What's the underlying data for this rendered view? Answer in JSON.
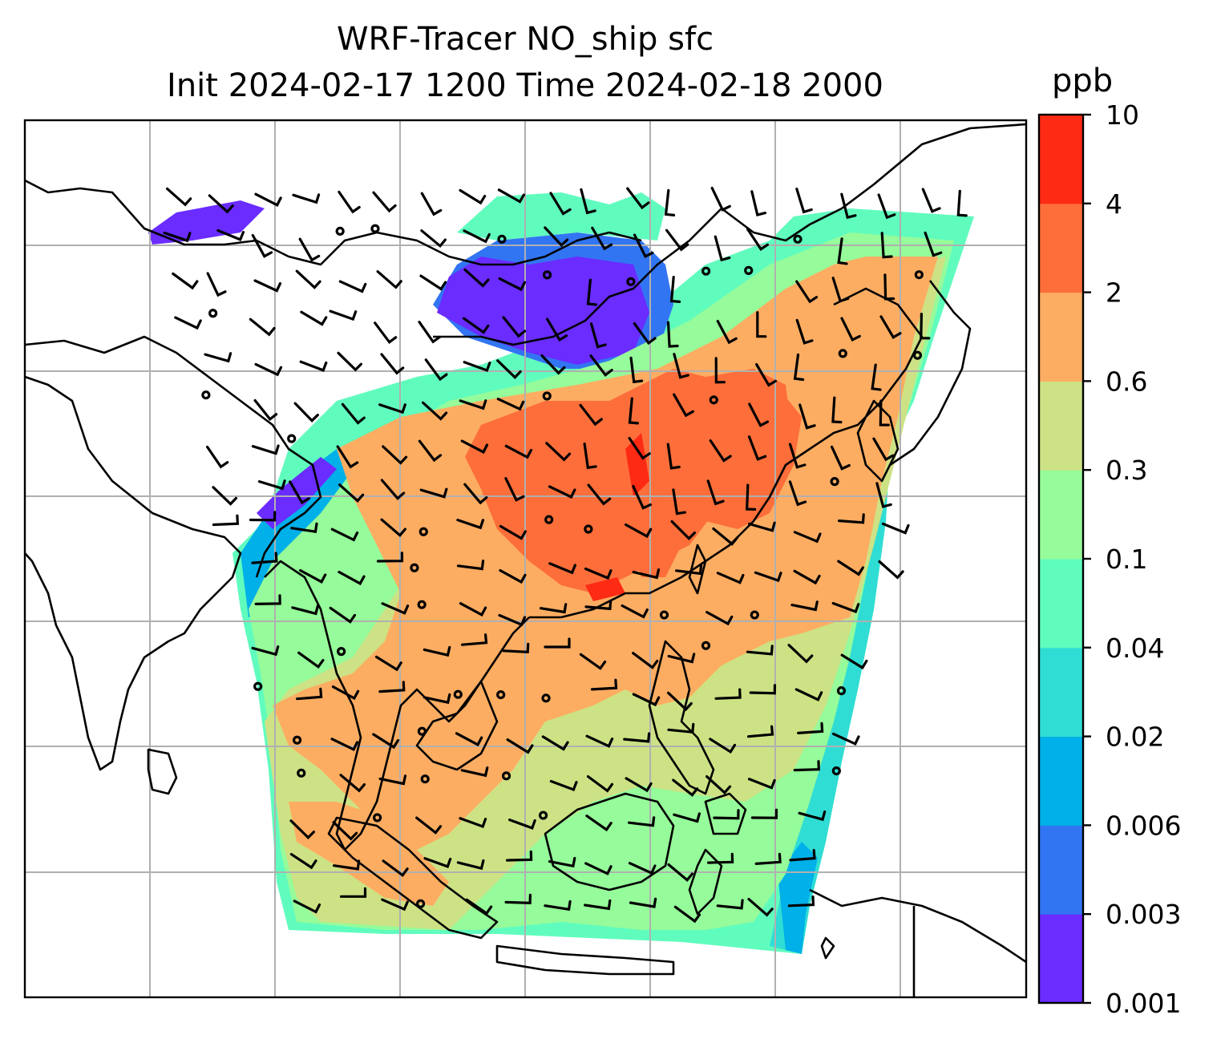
{
  "title": {
    "line1": "WRF-Tracer NO_ship sfc",
    "line2": "Init 2024-02-17 1200 Time 2024-02-18 2000"
  },
  "colorbar": {
    "unit": "ppb",
    "levels": [
      "0.001",
      "0.003",
      "0.006",
      "0.02",
      "0.04",
      "0.1",
      "0.3",
      "0.6",
      "2",
      "4",
      "10"
    ],
    "colors": [
      "#6a2cff",
      "#3275f2",
      "#00b0e8",
      "#30ddd4",
      "#60fcbe",
      "#96fb9a",
      "#cde285",
      "#fdad62",
      "#fd6e3a",
      "#fd2a14"
    ]
  },
  "map": {
    "field": "NO_ship",
    "level": "sfc",
    "gridlines": true,
    "coastlines": true,
    "wind_barbs": true
  }
}
